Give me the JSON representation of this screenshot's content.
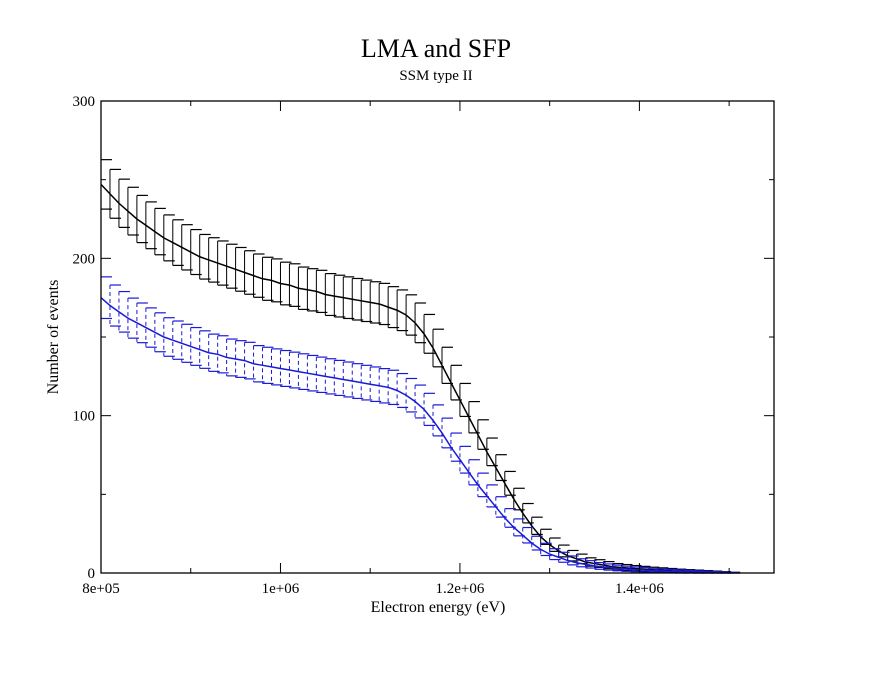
{
  "chart_data": {
    "type": "line",
    "title": "LMA and SFP",
    "subtitle": "SSM type II",
    "xlabel": "Electron energy (eV)",
    "ylabel": "Number of events",
    "xlim": [
      800000,
      1550000
    ],
    "ylim": [
      0,
      300
    ],
    "x_ticks": [
      {
        "value": 800000,
        "label": "8e+05"
      },
      {
        "value": 1000000,
        "label": "1e+06"
      },
      {
        "value": 1200000,
        "label": "1.2e+06"
      },
      {
        "value": 1400000,
        "label": "1.4e+06"
      }
    ],
    "y_ticks": [
      {
        "value": 0,
        "label": "0"
      },
      {
        "value": 100,
        "label": "100"
      },
      {
        "value": 200,
        "label": "200"
      },
      {
        "value": 300,
        "label": "300"
      }
    ],
    "grid": false,
    "series": [
      {
        "color": "#000000",
        "line_style": "solid",
        "error_bars": true,
        "points": [
          [
            800000,
            247
          ],
          [
            810000,
            241
          ],
          [
            820000,
            235
          ],
          [
            830000,
            230
          ],
          [
            840000,
            225
          ],
          [
            850000,
            221
          ],
          [
            860000,
            217
          ],
          [
            870000,
            213
          ],
          [
            880000,
            210
          ],
          [
            890000,
            207
          ],
          [
            900000,
            204
          ],
          [
            910000,
            201
          ],
          [
            920000,
            199
          ],
          [
            930000,
            197
          ],
          [
            940000,
            195
          ],
          [
            950000,
            193
          ],
          [
            960000,
            191
          ],
          [
            970000,
            189
          ],
          [
            980000,
            187
          ],
          [
            990000,
            186
          ],
          [
            1000000,
            184
          ],
          [
            1010000,
            183
          ],
          [
            1020000,
            181
          ],
          [
            1030000,
            180
          ],
          [
            1040000,
            179
          ],
          [
            1050000,
            177
          ],
          [
            1060000,
            176
          ],
          [
            1070000,
            175
          ],
          [
            1080000,
            174
          ],
          [
            1090000,
            173
          ],
          [
            1100000,
            172
          ],
          [
            1110000,
            171
          ],
          [
            1120000,
            169
          ],
          [
            1130000,
            167
          ],
          [
            1140000,
            164
          ],
          [
            1150000,
            159
          ],
          [
            1160000,
            152
          ],
          [
            1170000,
            143
          ],
          [
            1180000,
            132
          ],
          [
            1190000,
            121
          ],
          [
            1200000,
            110
          ],
          [
            1210000,
            99
          ],
          [
            1220000,
            88
          ],
          [
            1230000,
            77
          ],
          [
            1240000,
            67
          ],
          [
            1250000,
            57
          ],
          [
            1260000,
            47
          ],
          [
            1270000,
            38
          ],
          [
            1280000,
            30
          ],
          [
            1290000,
            23
          ],
          [
            1300000,
            18
          ],
          [
            1310000,
            14
          ],
          [
            1320000,
            11
          ],
          [
            1330000,
            9
          ],
          [
            1340000,
            7
          ],
          [
            1350000,
            6
          ],
          [
            1360000,
            5
          ],
          [
            1370000,
            4
          ],
          [
            1380000,
            3.5
          ],
          [
            1390000,
            3
          ],
          [
            1400000,
            2.6
          ],
          [
            1410000,
            2.2
          ],
          [
            1420000,
            1.9
          ],
          [
            1430000,
            1.6
          ],
          [
            1440000,
            1.3
          ],
          [
            1450000,
            1.1
          ],
          [
            1460000,
            0.9
          ],
          [
            1470000,
            0.7
          ],
          [
            1480000,
            0.5
          ],
          [
            1490000,
            0.3
          ],
          [
            1500000,
            0.1
          ]
        ]
      },
      {
        "color": "#1a1ad6",
        "line_style": "solid",
        "error_bar_style": "dashed",
        "error_bars": true,
        "points": [
          [
            800000,
            175
          ],
          [
            810000,
            170
          ],
          [
            820000,
            166
          ],
          [
            830000,
            162
          ],
          [
            840000,
            159
          ],
          [
            850000,
            156
          ],
          [
            860000,
            153
          ],
          [
            870000,
            150
          ],
          [
            880000,
            148
          ],
          [
            890000,
            146
          ],
          [
            900000,
            144
          ],
          [
            910000,
            142
          ],
          [
            920000,
            140
          ],
          [
            930000,
            139
          ],
          [
            940000,
            137
          ],
          [
            950000,
            136
          ],
          [
            960000,
            135
          ],
          [
            970000,
            133
          ],
          [
            980000,
            132
          ],
          [
            990000,
            131
          ],
          [
            1000000,
            130
          ],
          [
            1010000,
            129
          ],
          [
            1020000,
            128
          ],
          [
            1030000,
            127
          ],
          [
            1040000,
            126
          ],
          [
            1050000,
            125
          ],
          [
            1060000,
            124
          ],
          [
            1070000,
            123
          ],
          [
            1080000,
            122
          ],
          [
            1090000,
            121
          ],
          [
            1100000,
            120
          ],
          [
            1110000,
            119
          ],
          [
            1120000,
            118
          ],
          [
            1130000,
            116
          ],
          [
            1140000,
            113
          ],
          [
            1150000,
            109
          ],
          [
            1160000,
            104
          ],
          [
            1170000,
            97
          ],
          [
            1180000,
            89
          ],
          [
            1190000,
            80
          ],
          [
            1200000,
            72
          ],
          [
            1210000,
            64
          ],
          [
            1220000,
            56
          ],
          [
            1230000,
            49
          ],
          [
            1240000,
            42
          ],
          [
            1250000,
            35
          ],
          [
            1260000,
            29
          ],
          [
            1270000,
            24
          ],
          [
            1280000,
            19
          ],
          [
            1290000,
            15
          ],
          [
            1300000,
            12
          ],
          [
            1310000,
            10
          ],
          [
            1320000,
            8
          ],
          [
            1330000,
            6.5
          ],
          [
            1340000,
            5.5
          ],
          [
            1350000,
            4.5
          ],
          [
            1360000,
            3.8
          ],
          [
            1370000,
            3.2
          ],
          [
            1380000,
            2.7
          ],
          [
            1390000,
            2.3
          ],
          [
            1400000,
            2
          ],
          [
            1410000,
            1.7
          ],
          [
            1420000,
            1.4
          ],
          [
            1430000,
            1.2
          ],
          [
            1440000,
            1
          ],
          [
            1450000,
            0.8
          ],
          [
            1460000,
            0.6
          ],
          [
            1470000,
            0.5
          ],
          [
            1480000,
            0.3
          ],
          [
            1490000,
            0.2
          ],
          [
            1500000,
            0.1
          ]
        ]
      }
    ]
  }
}
